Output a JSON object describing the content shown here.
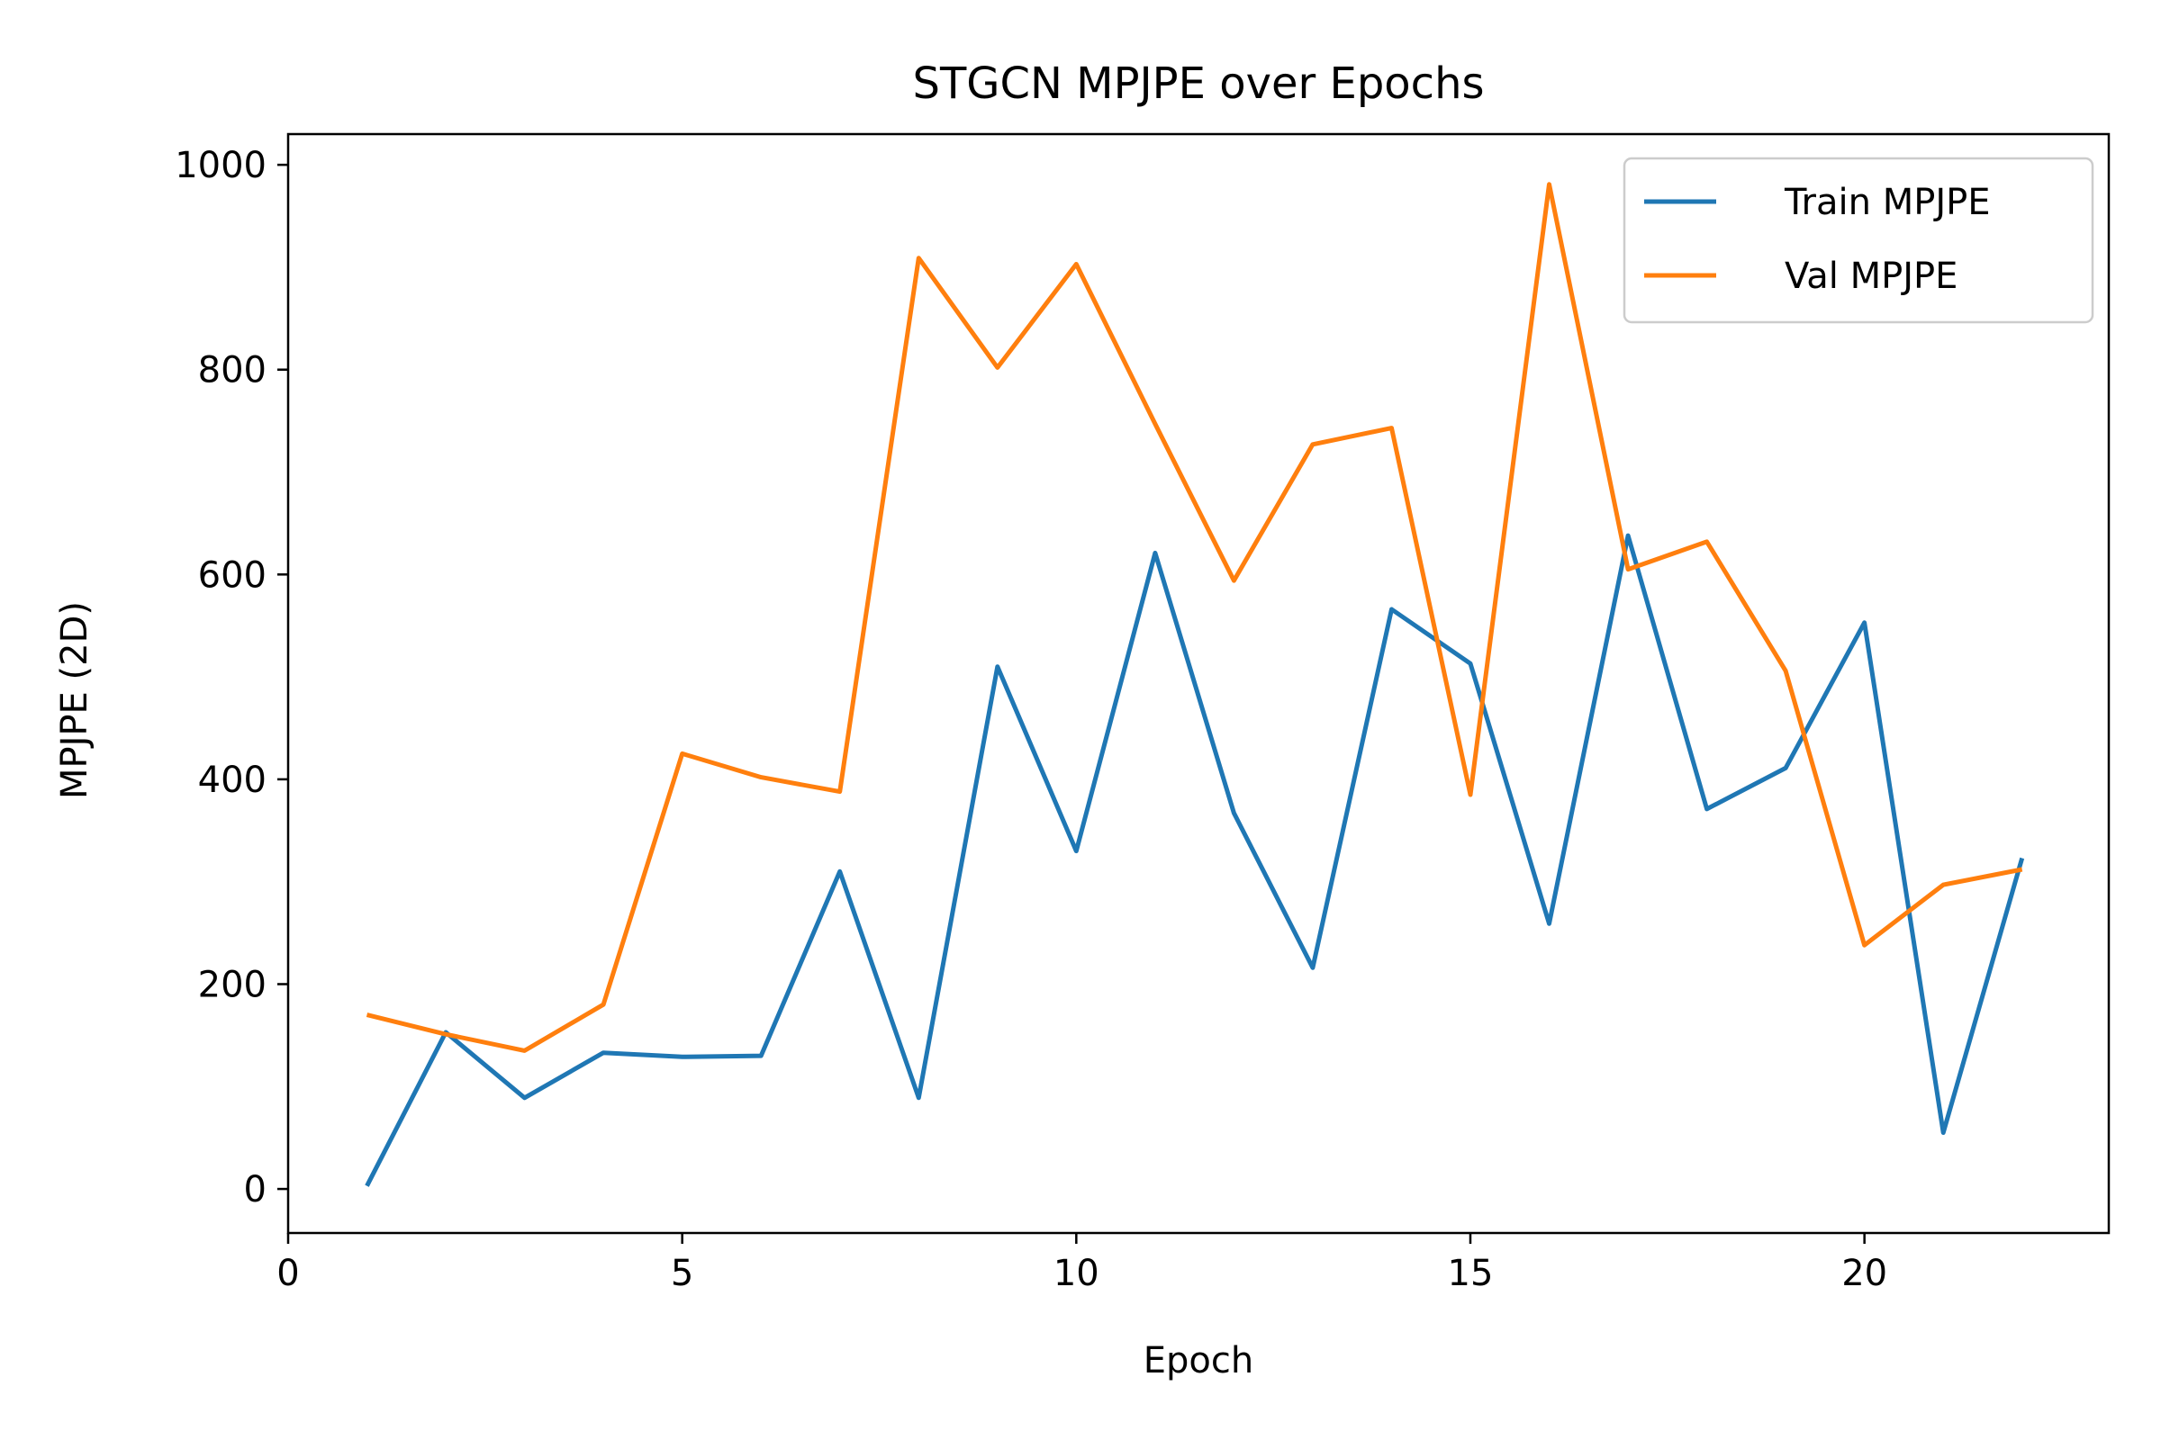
{
  "chart_data": {
    "type": "line",
    "title": "STGCN MPJPE over Epochs",
    "xlabel": "Epoch",
    "ylabel": "MPJPE (2D)",
    "xlim": [
      0,
      23.1
    ],
    "ylim": [
      -43,
      1030
    ],
    "xticks": [
      0,
      5,
      10,
      15,
      20
    ],
    "yticks": [
      0,
      200,
      400,
      600,
      800,
      1000
    ],
    "grid": false,
    "legend_position": "upper right",
    "x": [
      1,
      2,
      3,
      4,
      5,
      6,
      7,
      8,
      9,
      10,
      11,
      12,
      13,
      14,
      15,
      16,
      17,
      18,
      19,
      20,
      21,
      22
    ],
    "series": [
      {
        "name": "Train MPJPE",
        "color": "#1f77b4",
        "values": [
          3,
          153,
          89,
          133,
          129,
          130,
          310,
          89,
          510,
          330,
          621,
          367,
          216,
          566,
          513,
          259,
          638,
          371,
          411,
          553,
          55,
          323
        ]
      },
      {
        "name": "Val MPJPE",
        "color": "#ff7f0e",
        "values": [
          170,
          151,
          135,
          180,
          425,
          402,
          388,
          909,
          802,
          903,
          747,
          594,
          727,
          743,
          385,
          981,
          605,
          632,
          506,
          238,
          297,
          312
        ]
      }
    ]
  }
}
